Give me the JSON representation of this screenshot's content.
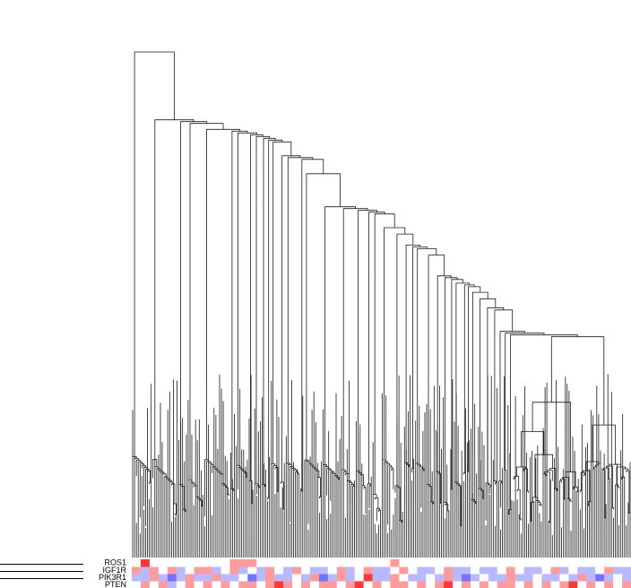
{
  "heatmap": {
    "rows": [
      {
        "label": "ROS1",
        "values": [
          0,
          2,
          0,
          0,
          0,
          0,
          0,
          0,
          0,
          0,
          0,
          1,
          1,
          1,
          0,
          0,
          0,
          0,
          0,
          0,
          0,
          0,
          0,
          0,
          0,
          0,
          0,
          0,
          0,
          1,
          0,
          0,
          0,
          0,
          0,
          0,
          0,
          0,
          0,
          0,
          0,
          0,
          0,
          0,
          0,
          0,
          0,
          0,
          0,
          0,
          0,
          0,
          0,
          0,
          0,
          0
        ]
      },
      {
        "label": "IGF1R",
        "values": [
          1,
          -1,
          1,
          0,
          1,
          -1,
          0,
          1,
          1,
          -1,
          0,
          1,
          -1,
          0,
          -1,
          1,
          0,
          -1,
          1,
          0,
          -1,
          -1,
          0,
          1,
          -1,
          0,
          1,
          -1,
          -1,
          0,
          1,
          0,
          -1,
          -1,
          0,
          1,
          -1,
          -1,
          0,
          -1,
          -1,
          0,
          1,
          0,
          -1,
          -1,
          0,
          1,
          -1,
          0,
          -1,
          -1,
          0,
          1,
          -1,
          -1
        ]
      },
      {
        "label": "PIK3R1",
        "values": [
          -1,
          -1,
          1,
          -1,
          -2,
          -1,
          1,
          -1,
          -1,
          1,
          -1,
          -1,
          0,
          -2,
          -1,
          1,
          -1,
          -1,
          0,
          -1,
          1,
          -2,
          -1,
          1,
          -1,
          0,
          2,
          -1,
          -1,
          1,
          0,
          -1,
          -1,
          0,
          -1,
          1,
          -1,
          -2,
          -1,
          0,
          -1,
          -1,
          1,
          -1,
          -1,
          0,
          -1,
          -1,
          0,
          -1,
          1,
          -1,
          -2,
          -1,
          0,
          -1
        ]
      },
      {
        "label": "PTEN",
        "values": [
          0,
          1,
          0,
          1,
          -1,
          0,
          1,
          0,
          1,
          0,
          1,
          0,
          1,
          1,
          0,
          1,
          2,
          1,
          0,
          1,
          0,
          1,
          1,
          0,
          1,
          2,
          0,
          1,
          0,
          1,
          1,
          0,
          1,
          0,
          1,
          2,
          0,
          1,
          0,
          1,
          0,
          1,
          1,
          0,
          1,
          0,
          1,
          0,
          1,
          2,
          0,
          1,
          0,
          1,
          0,
          1
        ]
      }
    ]
  }
}
